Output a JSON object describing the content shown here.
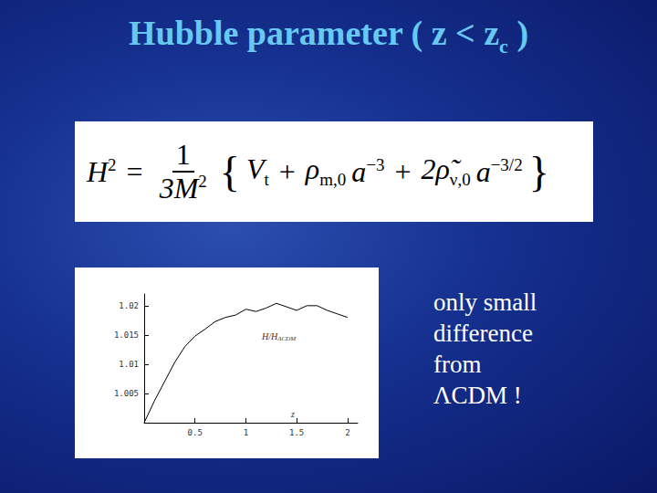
{
  "slide": {
    "title": [
      {
        "t": "Hubble parameter ( z < z",
        "sub": "c"
      },
      {
        "t": " )"
      }
    ],
    "equation": {
      "lhs": [
        {
          "t": "H",
          "sup": "2"
        }
      ],
      "equals": "=",
      "numerator": "1",
      "denominator": [
        {
          "t": "3M",
          "sup": "2"
        }
      ],
      "open": "{",
      "terms": [
        {
          "t": "V",
          "sub": "t"
        },
        {
          "op": "+"
        },
        {
          "t": "ρ",
          "sub": "m,0"
        },
        {
          "t": "a",
          "sup": "−3"
        },
        {
          "op": "+"
        },
        {
          "t": "2ρ̃",
          "sub": "ν,0"
        },
        {
          "t": "a",
          "sup": "−3/2"
        }
      ],
      "close": "}"
    },
    "note": [
      "only small",
      "difference",
      "from",
      "ΛCDM !"
    ]
  },
  "chart_data": {
    "type": "line",
    "xlabel": "z",
    "annotation": {
      "text": "H/H",
      "sub": "ΛCDM"
    },
    "x": [
      0,
      0.1,
      0.2,
      0.3,
      0.4,
      0.5,
      0.6,
      0.7,
      0.8,
      0.9,
      1.0,
      1.1,
      1.2,
      1.3,
      1.4,
      1.5,
      1.6,
      1.7,
      1.8,
      1.9,
      2.0
    ],
    "values": [
      1.0,
      1.0037,
      1.007,
      1.0103,
      1.013,
      1.0148,
      1.016,
      1.0173,
      1.018,
      1.0184,
      1.0194,
      1.019,
      1.0196,
      1.0204,
      1.0198,
      1.0192,
      1.02,
      1.02,
      1.0192,
      1.0186,
      1.018
    ],
    "color": "#000000",
    "xlim": [
      0,
      2.1
    ],
    "xticks": [
      0.5,
      1,
      1.5,
      2
    ],
    "ylim": [
      1.0,
      1.022
    ],
    "yticks": [
      1.005,
      1.01,
      1.015,
      1.02
    ],
    "grid": false
  }
}
